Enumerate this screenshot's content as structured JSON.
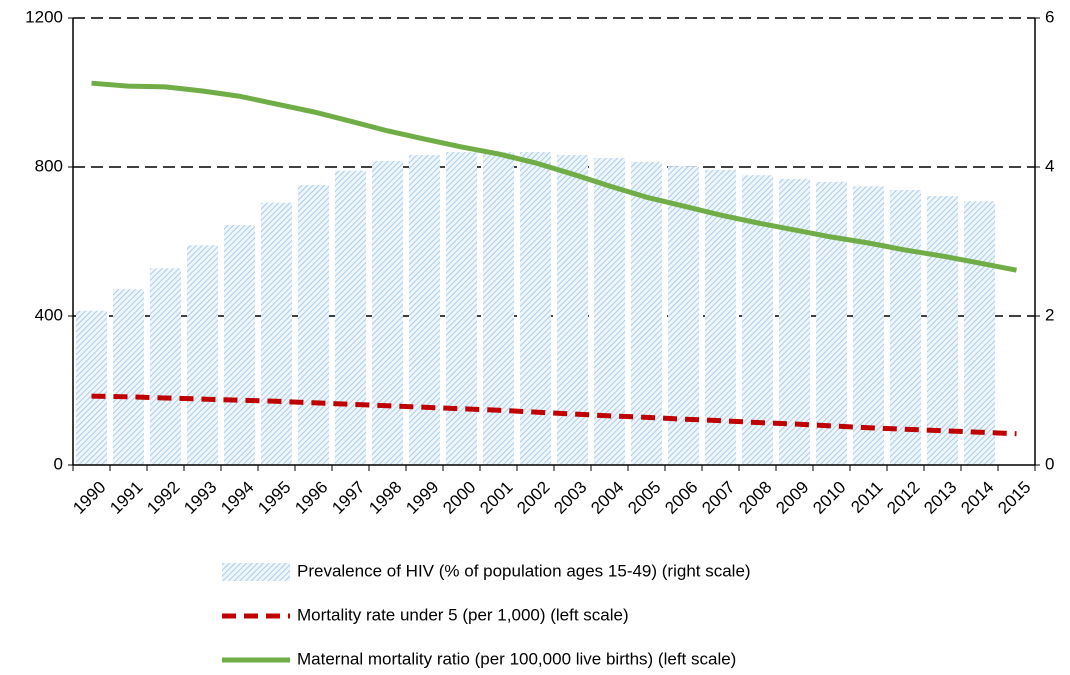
{
  "chart_data": {
    "type": "bar",
    "categories": [
      "1990",
      "1991",
      "1992",
      "1993",
      "1994",
      "1995",
      "1996",
      "1997",
      "1998",
      "1999",
      "2000",
      "2001",
      "2002",
      "2003",
      "2004",
      "2005",
      "2006",
      "2007",
      "2008",
      "2009",
      "2010",
      "2011",
      "2012",
      "2013",
      "2014",
      "2015"
    ],
    "series": [
      {
        "name": "Prevalence of HIV (% of population ages 15-49) (right scale)",
        "type": "bar",
        "axis": "y2",
        "color": "#9dc3e6",
        "values": [
          2.07,
          2.36,
          2.64,
          2.95,
          3.22,
          3.52,
          3.76,
          3.95,
          4.08,
          4.16,
          4.2,
          4.2,
          4.2,
          4.16,
          4.12,
          4.07,
          4.01,
          3.96,
          3.89,
          3.84,
          3.8,
          3.74,
          3.69,
          3.61,
          3.54,
          null
        ]
      },
      {
        "name": "Mortality rate under 5 (per 1,000) (left scale)",
        "type": "line",
        "dashed": true,
        "color": "#c00000",
        "values": [
          185,
          183,
          180,
          177,
          174,
          171,
          167,
          163,
          159,
          155,
          151,
          147,
          142,
          137,
          132,
          128,
          123,
          119,
          114,
          110,
          105,
          100,
          96,
          92,
          88,
          84
        ]
      },
      {
        "name": "Maternal mortality ratio (per 100,000 live births) (left scale)",
        "type": "line",
        "color": "#70ad47",
        "values": [
          1025,
          1017,
          1015,
          1004,
          990,
          969,
          948,
          923,
          897,
          875,
          854,
          835,
          811,
          781,
          749,
          719,
          695,
          671,
          650,
          631,
          612,
          596,
          577,
          561,
          542,
          523
        ]
      }
    ],
    "ylim": [
      0,
      1200
    ],
    "yticks": [
      0,
      400,
      800,
      1200
    ],
    "y2lim": [
      0,
      6
    ],
    "y2ticks": [
      0,
      2,
      4,
      6
    ],
    "grid": true
  }
}
